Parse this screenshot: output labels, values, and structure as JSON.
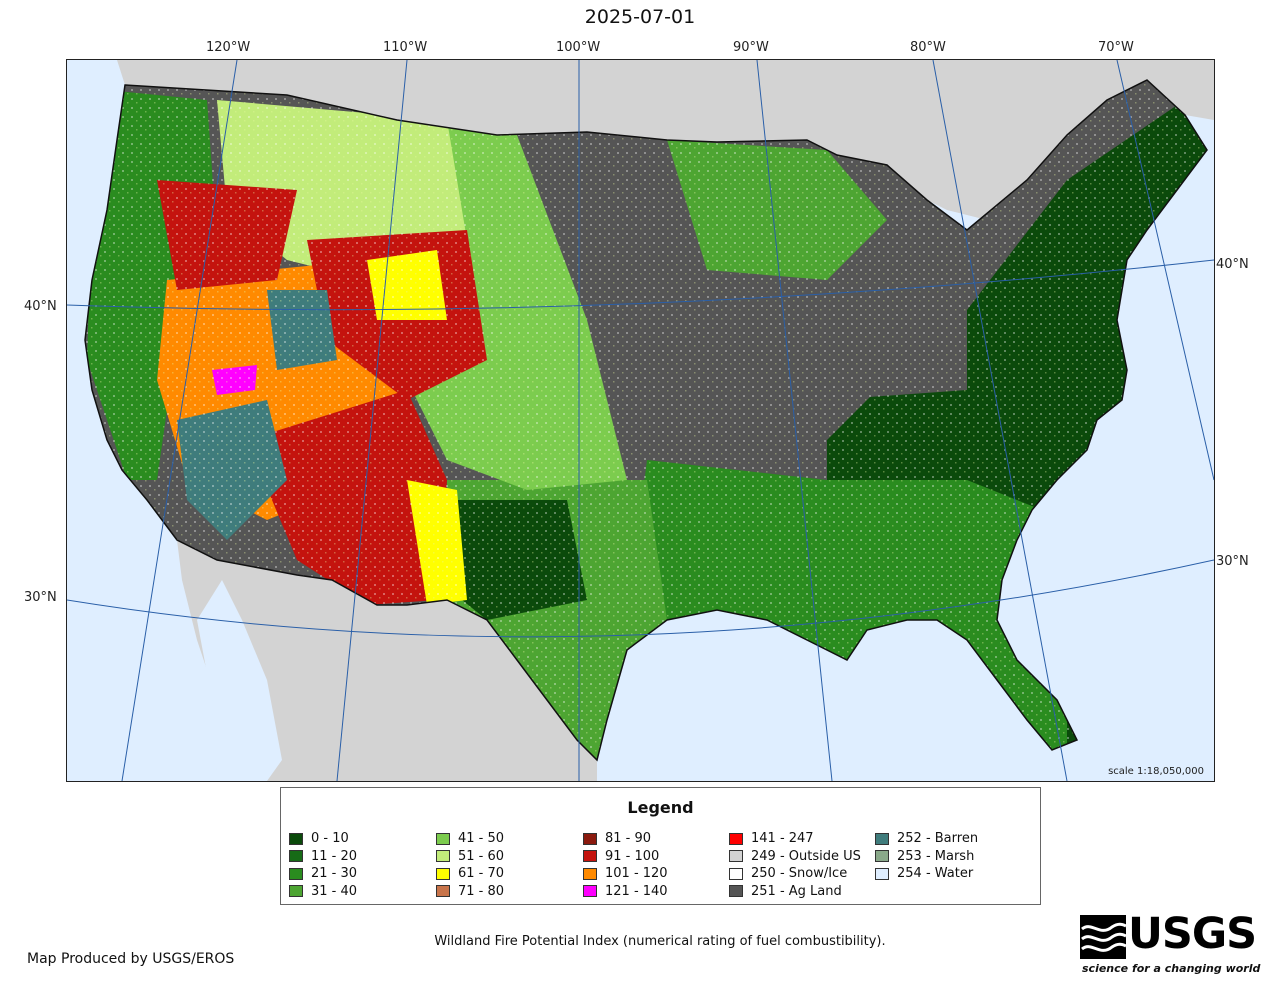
{
  "title": "2025-07-01",
  "lon_labels": [
    "120°W",
    "110°W",
    "100°W",
    "90°W",
    "80°W",
    "70°W"
  ],
  "lat_labels": {
    "40N": "40°N",
    "30N": "30°N"
  },
  "scale": "scale 1:18,050,000",
  "legend": {
    "title": "Legend",
    "columns": [
      [
        {
          "label": "0 - 10",
          "color": "#0b4a0b"
        },
        {
          "label": "11 - 20",
          "color": "#176b17"
        },
        {
          "label": "21 - 30",
          "color": "#2a8c1f"
        },
        {
          "label": "31 - 40",
          "color": "#4da532"
        }
      ],
      [
        {
          "label": "41 - 50",
          "color": "#7ccc4e"
        },
        {
          "label": "51 - 60",
          "color": "#c2ec7a"
        },
        {
          "label": "61 - 70",
          "color": "#ffff00"
        },
        {
          "label": "71 - 80",
          "color": "#c8744a"
        }
      ],
      [
        {
          "label": "81 - 90",
          "color": "#8b1a0e"
        },
        {
          "label": "91 - 100",
          "color": "#c4130e"
        },
        {
          "label": "101 - 120",
          "color": "#ff8a00"
        },
        {
          "label": "121 - 140",
          "color": "#ff00ff"
        }
      ],
      [
        {
          "label": "141 - 247",
          "color": "#ff0000"
        },
        {
          "label": "249 - Outside US",
          "color": "#d3d3d3"
        },
        {
          "label": "250 - Snow/Ice",
          "color": "#ffffff"
        },
        {
          "label": "251 - Ag Land",
          "color": "#555555"
        }
      ],
      [
        {
          "label": "252 - Barren",
          "color": "#3f7c7c"
        },
        {
          "label": "253 - Marsh",
          "color": "#8aa98a"
        },
        {
          "label": "254 - Water",
          "color": "#dfeeff"
        }
      ]
    ]
  },
  "caption": "Wildland Fire Potential Index (numerical rating of fuel combustibility).",
  "credit": "Map Produced by USGS/EROS",
  "logo": {
    "wordmark": "USGS",
    "tagline": "science for a changing world"
  }
}
